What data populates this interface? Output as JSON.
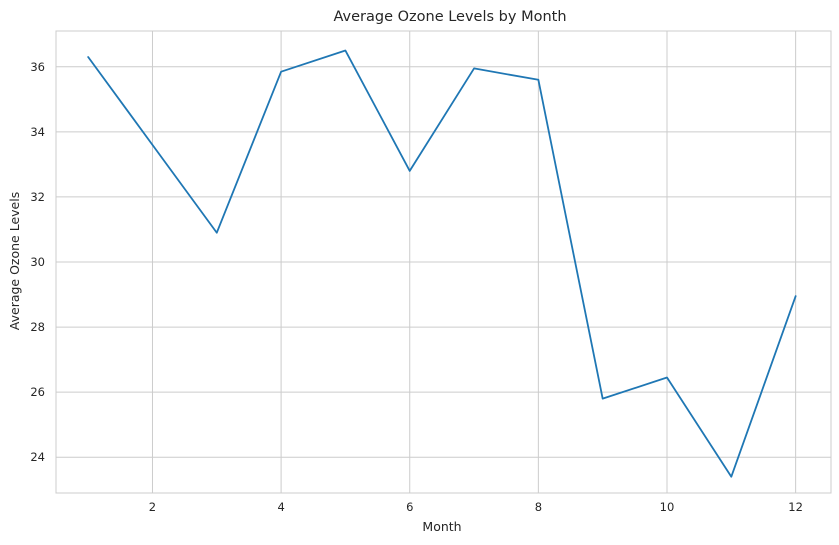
{
  "chart_data": {
    "type": "line",
    "title": "Average Ozone Levels by Month",
    "xlabel": "Month",
    "ylabel": "Average Ozone Levels",
    "xlim": [
      0.5,
      12.55
    ],
    "ylim": [
      22.9,
      37.1
    ],
    "xticks": [
      2,
      4,
      6,
      8,
      10,
      12
    ],
    "yticks": [
      24,
      26,
      28,
      30,
      32,
      34,
      36
    ],
    "grid": true,
    "x": [
      1,
      2,
      3,
      4,
      5,
      6,
      7,
      8,
      9,
      10,
      11,
      12
    ],
    "series": [
      {
        "values": [
          36.3,
          33.6,
          30.9,
          35.85,
          36.5,
          32.8,
          35.95,
          35.6,
          25.8,
          26.45,
          23.4,
          28.95
        ],
        "color": "#1f77b4"
      }
    ]
  }
}
